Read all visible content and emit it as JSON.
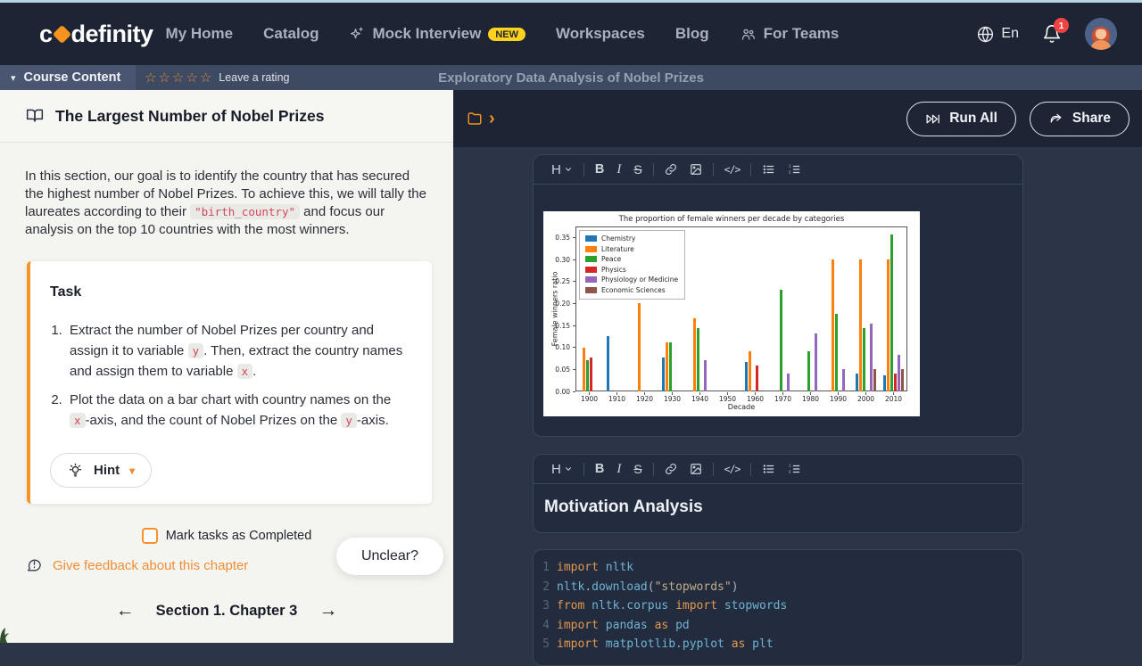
{
  "navbar": {
    "logo_pre": "c",
    "logo_post": "definity",
    "items": [
      {
        "label": "My Home"
      },
      {
        "label": "Catalog"
      },
      {
        "label": "Mock Interview",
        "icon": "sparkle",
        "badge": "NEW"
      },
      {
        "label": "Workspaces"
      },
      {
        "label": "Blog"
      },
      {
        "label": "For Teams",
        "icon": "people"
      }
    ],
    "language": "En",
    "notification_count": "1"
  },
  "course_bar": {
    "menu_label": "Course Content",
    "stars": 5,
    "rating_label": "Leave a rating",
    "course_title": "Exploratory Data Analysis of Nobel Prizes"
  },
  "lesson": {
    "title": "The Largest Number of Nobel Prizes",
    "intro": [
      {
        "text": "In this section, our goal is to identify the country that has secured the highest number of Nobel Prizes. To achieve this, we will tally the laureates according to their "
      },
      {
        "code": "\"birth_country\""
      },
      {
        "text": " and focus our analysis on the top 10 countries with the most winners."
      }
    ],
    "task_heading": "Task",
    "task_items": [
      [
        {
          "text": "Extract the number of Nobel Prizes per country and assign it to variable "
        },
        {
          "code": "y"
        },
        {
          "text": ". Then, extract the country names and assign them to variable "
        },
        {
          "code": "x"
        },
        {
          "text": "."
        }
      ],
      [
        {
          "text": "Plot the data on a bar chart with country names on the "
        },
        {
          "code": "x"
        },
        {
          "text": "-axis, and the count of Nobel Prizes on the "
        },
        {
          "code": "y"
        },
        {
          "text": "-axis."
        }
      ]
    ],
    "hint_label": "Hint",
    "mark_label": "Mark tasks as Completed",
    "feedback_label": "Give feedback about this chapter",
    "unclear_label": "Unclear?",
    "chapter_nav_label": "Section 1. Chapter 3"
  },
  "notebook": {
    "run_all_label": "Run All",
    "share_label": "Share",
    "toolbar_groups": [
      [
        "heading"
      ],
      [
        "bold",
        "italic",
        "strikethrough"
      ],
      [
        "link",
        "image"
      ],
      [
        "code"
      ],
      [
        "bullet-list",
        "ordered-list"
      ]
    ],
    "markdown_heading": "Motivation Analysis",
    "code_lines": [
      [
        {
          "t": "import",
          "c": "kw"
        },
        {
          "t": " nltk",
          "c": "id"
        }
      ],
      [
        {
          "t": "nltk",
          "c": "id"
        },
        {
          "t": ".",
          "c": "pn"
        },
        {
          "t": "download",
          "c": "id"
        },
        {
          "t": "(",
          "c": "pn"
        },
        {
          "t": "\"stopwords\"",
          "c": "str"
        },
        {
          "t": ")",
          "c": "pn"
        }
      ],
      [
        {
          "t": "from",
          "c": "kw"
        },
        {
          "t": " nltk.corpus ",
          "c": "id"
        },
        {
          "t": "import",
          "c": "kw"
        },
        {
          "t": " stopwords",
          "c": "id"
        }
      ],
      [
        {
          "t": "import",
          "c": "kw"
        },
        {
          "t": " pandas ",
          "c": "id"
        },
        {
          "t": "as",
          "c": "kw"
        },
        {
          "t": " pd",
          "c": "id"
        }
      ],
      [
        {
          "t": "import",
          "c": "kw"
        },
        {
          "t": " matplotlib.pyplot ",
          "c": "id"
        },
        {
          "t": "as",
          "c": "kw"
        },
        {
          "t": " plt",
          "c": "id"
        }
      ]
    ]
  },
  "chart_data": {
    "type": "bar",
    "title": "The proportion of female winners per decade by categories",
    "xlabel": "Decade",
    "ylabel": "Female winners ratio",
    "categories": [
      "1900",
      "1910",
      "1920",
      "1930",
      "1940",
      "1950",
      "1960",
      "1970",
      "1980",
      "1990",
      "2000",
      "2010"
    ],
    "series": [
      {
        "name": "Chemistry",
        "color": "#1f77b4",
        "values": [
          0,
          0.125,
          0,
          0.077,
          0,
          0,
          0.067,
          0,
          0,
          0,
          0.04,
          0.037
        ]
      },
      {
        "name": "Literature",
        "color": "#ff7f0e",
        "values": [
          0.1,
          0,
          0.2,
          0.111,
          0.167,
          0,
          0.091,
          0,
          0,
          0.3,
          0.3,
          0.3
        ]
      },
      {
        "name": "Peace",
        "color": "#2ca02c",
        "values": [
          0.071,
          0,
          0,
          0.111,
          0.143,
          0,
          0,
          0.231,
          0.091,
          0.176,
          0.143,
          0.357
        ]
      },
      {
        "name": "Physics",
        "color": "#d62728",
        "values": [
          0.077,
          0,
          0,
          0,
          0,
          0,
          0.059,
          0,
          0,
          0,
          0,
          0.04
        ]
      },
      {
        "name": "Physiology or Medicine",
        "color": "#9467bd",
        "values": [
          0,
          0,
          0,
          0,
          0.071,
          0,
          0,
          0.04,
          0.131,
          0.05,
          0.154,
          0.083
        ]
      },
      {
        "name": "Economic Sciences",
        "color": "#8c564b",
        "values": [
          0,
          0,
          0,
          0,
          0,
          0,
          0,
          0,
          0,
          0,
          0.05,
          0.05
        ]
      }
    ],
    "yticks": [
      0.0,
      0.05,
      0.1,
      0.15,
      0.2,
      0.25,
      0.3,
      0.35
    ],
    "ylim": [
      0,
      0.375
    ],
    "legend_position": "upper-left",
    "grid": false
  },
  "accents": {
    "brand_orange": "#f7931e",
    "badge_yellow": "#ffd21e",
    "notification_red": "#ef4444",
    "code_chip_red": "#d6455f"
  }
}
